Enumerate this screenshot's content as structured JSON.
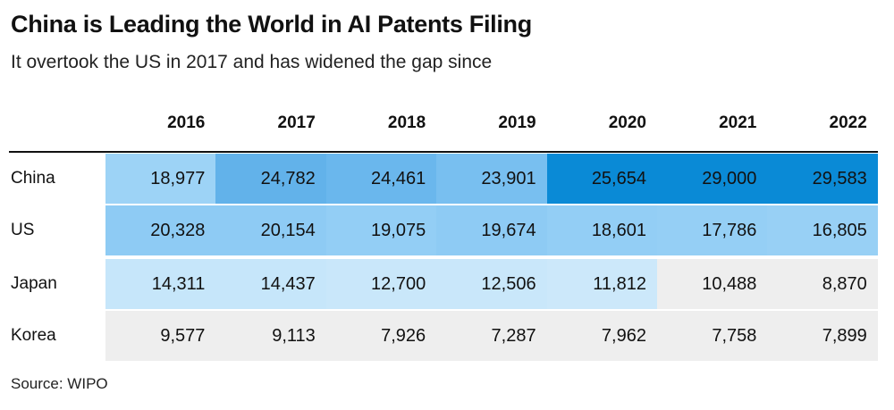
{
  "header": {
    "title": "China is Leading the World in AI Patents Filing",
    "subtitle": "It overtook the US in 2017 and has widened the gap since"
  },
  "table": {
    "columns": [
      "2016",
      "2017",
      "2018",
      "2019",
      "2020",
      "2021",
      "2022"
    ],
    "rows": [
      {
        "label": "China",
        "cells": [
          "18,977",
          "24,782",
          "24,461",
          "23,901",
          "25,654",
          "29,000",
          "29,583"
        ],
        "colors": [
          "#9dd3f6",
          "#62b2ea",
          "#6ab7ed",
          "#78bff0",
          "#0a8ad6",
          "#0a8ad6",
          "#0a8ad6"
        ]
      },
      {
        "label": "US",
        "cells": [
          "20,328",
          "20,154",
          "19,075",
          "19,674",
          "18,601",
          "17,786",
          "16,805"
        ],
        "colors": [
          "#8ecbf4",
          "#8ecbf4",
          "#93cef5",
          "#8ecbf4",
          "#93cef5",
          "#95cff5",
          "#98d0f5"
        ]
      },
      {
        "label": "Japan",
        "cells": [
          "14,311",
          "14,437",
          "12,700",
          "12,506",
          "11,812",
          "10,488",
          "8,870"
        ],
        "colors": [
          "#c6e6fa",
          "#c6e6fa",
          "#c9e7fa",
          "#c9e7fa",
          "#cce8fa",
          "#eeeeee",
          "#eeeeee"
        ]
      },
      {
        "label": "Korea",
        "cells": [
          "9,577",
          "9,113",
          "7,926",
          "7,287",
          "7,962",
          "7,758",
          "7,899"
        ],
        "colors": [
          "#eeeeee",
          "#eeeeee",
          "#eeeeee",
          "#eeeeee",
          "#eeeeee",
          "#eeeeee",
          "#eeeeee"
        ]
      }
    ]
  },
  "footer": {
    "source": "Source: WIPO"
  }
}
